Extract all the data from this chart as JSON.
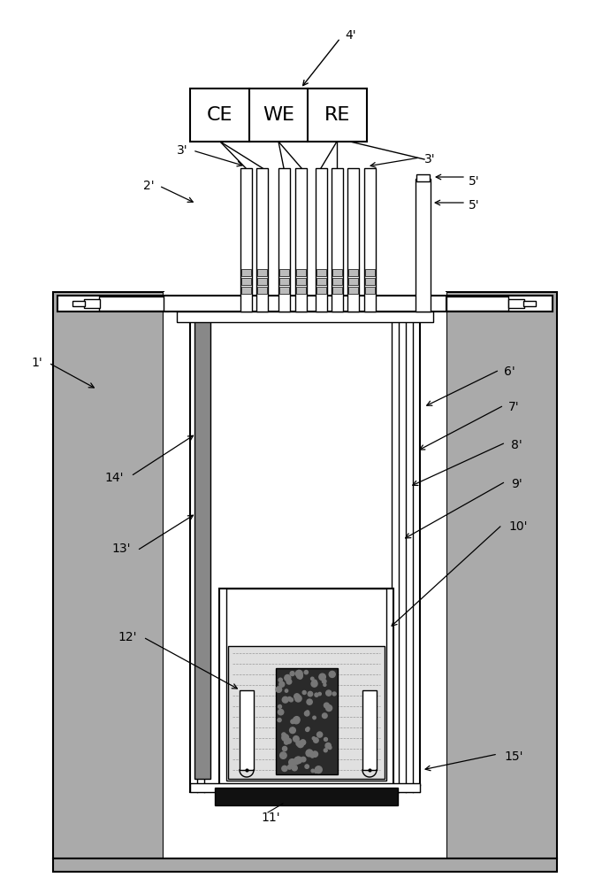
{
  "bg_color": "#ffffff",
  "lc": "#000000",
  "gray_furnace": "#aaaaaa",
  "gray_dark": "#888888",
  "gray_med": "#999999",
  "gray_light": "#cccccc",
  "labels": {
    "1p": "1'",
    "2p": "2'",
    "3p": "3'",
    "4p": "4'",
    "5p": "5'",
    "6p": "6'",
    "7p": "7'",
    "8p": "8'",
    "9p": "9'",
    "10p": "10'",
    "11p": "11'",
    "12p": "12'",
    "13p": "13'",
    "14p": "14'",
    "15p": "15'"
  },
  "CE": "CE",
  "WE": "WE",
  "RE": "RE",
  "figw": 6.9,
  "figh": 10.0,
  "dpi": 100
}
